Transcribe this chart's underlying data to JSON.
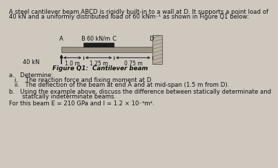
{
  "title_line1": "A steel cantilever beam ABCD is rigidly built-in to a wall at D. It supports a point load of",
  "title_line2": "40 kN and a uniformly distributed load of 60 kNm⁻¹ as shown in Figure Q1 below:",
  "figure_caption": "Figure Q1:  Cantilever beam",
  "beam_label_A": "A",
  "beam_label_B": "B",
  "beam_label_C": "C",
  "beam_label_D": "D",
  "udl_label": "60 kN/m",
  "point_load_label": "40 kN",
  "dim1": "1.0 m",
  "dim2": "1.25 m",
  "dim3": "0.75 m",
  "qa_label": "a.   Determine:",
  "qa_i": "i.    The reaction force and fixing moment at D",
  "qa_ii": "ii.   The deflection of the beam at end A and at mid-span (1.5 m from D).",
  "qb_label": "b.   Using the example above, discuss the difference between statically determinate and",
  "qb_line2": "       statically indeterminate beams.",
  "qei": "For this beam E = 210 GPa and I = 1.2 × 10⁻³m⁴.",
  "bg_color": "#cec8bf",
  "beam_fill": "#9a9285",
  "udl_fill": "#1e1e1e",
  "wall_fill": "#b8b0a0",
  "wall_hatch": "#888070",
  "text_color": "#111111"
}
